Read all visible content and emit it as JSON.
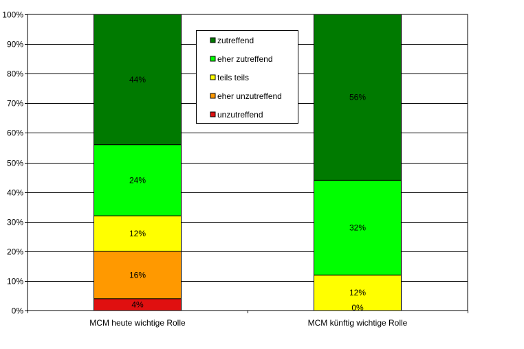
{
  "chart_data": {
    "type": "bar",
    "stacked": true,
    "percent_stacked": true,
    "categories": [
      "MCM heute wichtige Rolle",
      "MCM künftig wichtige Rolle"
    ],
    "series": [
      {
        "name": "unzutreffend",
        "color": "#e01010",
        "values": [
          4,
          0
        ]
      },
      {
        "name": "eher unzutreffend",
        "color": "#ff9900",
        "values": [
          16,
          0
        ]
      },
      {
        "name": "teils teils",
        "color": "#ffff00",
        "values": [
          12,
          12
        ]
      },
      {
        "name": "eher zutreffend",
        "color": "#00ff00",
        "values": [
          24,
          32
        ]
      },
      {
        "name": "zutreffend",
        "color": "#007a00",
        "values": [
          44,
          56
        ]
      }
    ],
    "data_labels": [
      [
        "4%",
        "0%"
      ],
      [
        "16%",
        ""
      ],
      [
        "12%",
        "12%"
      ],
      [
        "24%",
        "32%"
      ],
      [
        "44%",
        "56%"
      ]
    ],
    "legend_order": [
      "zutreffend",
      "eher zutreffend",
      "teils teils",
      "eher unzutreffend",
      "unzutreffend"
    ],
    "legend_position": "top-center",
    "yticks": [
      "0%",
      "10%",
      "20%",
      "30%",
      "40%",
      "50%",
      "60%",
      "70%",
      "80%",
      "90%",
      "100%"
    ],
    "ylim": [
      0,
      100
    ],
    "grid": true
  }
}
